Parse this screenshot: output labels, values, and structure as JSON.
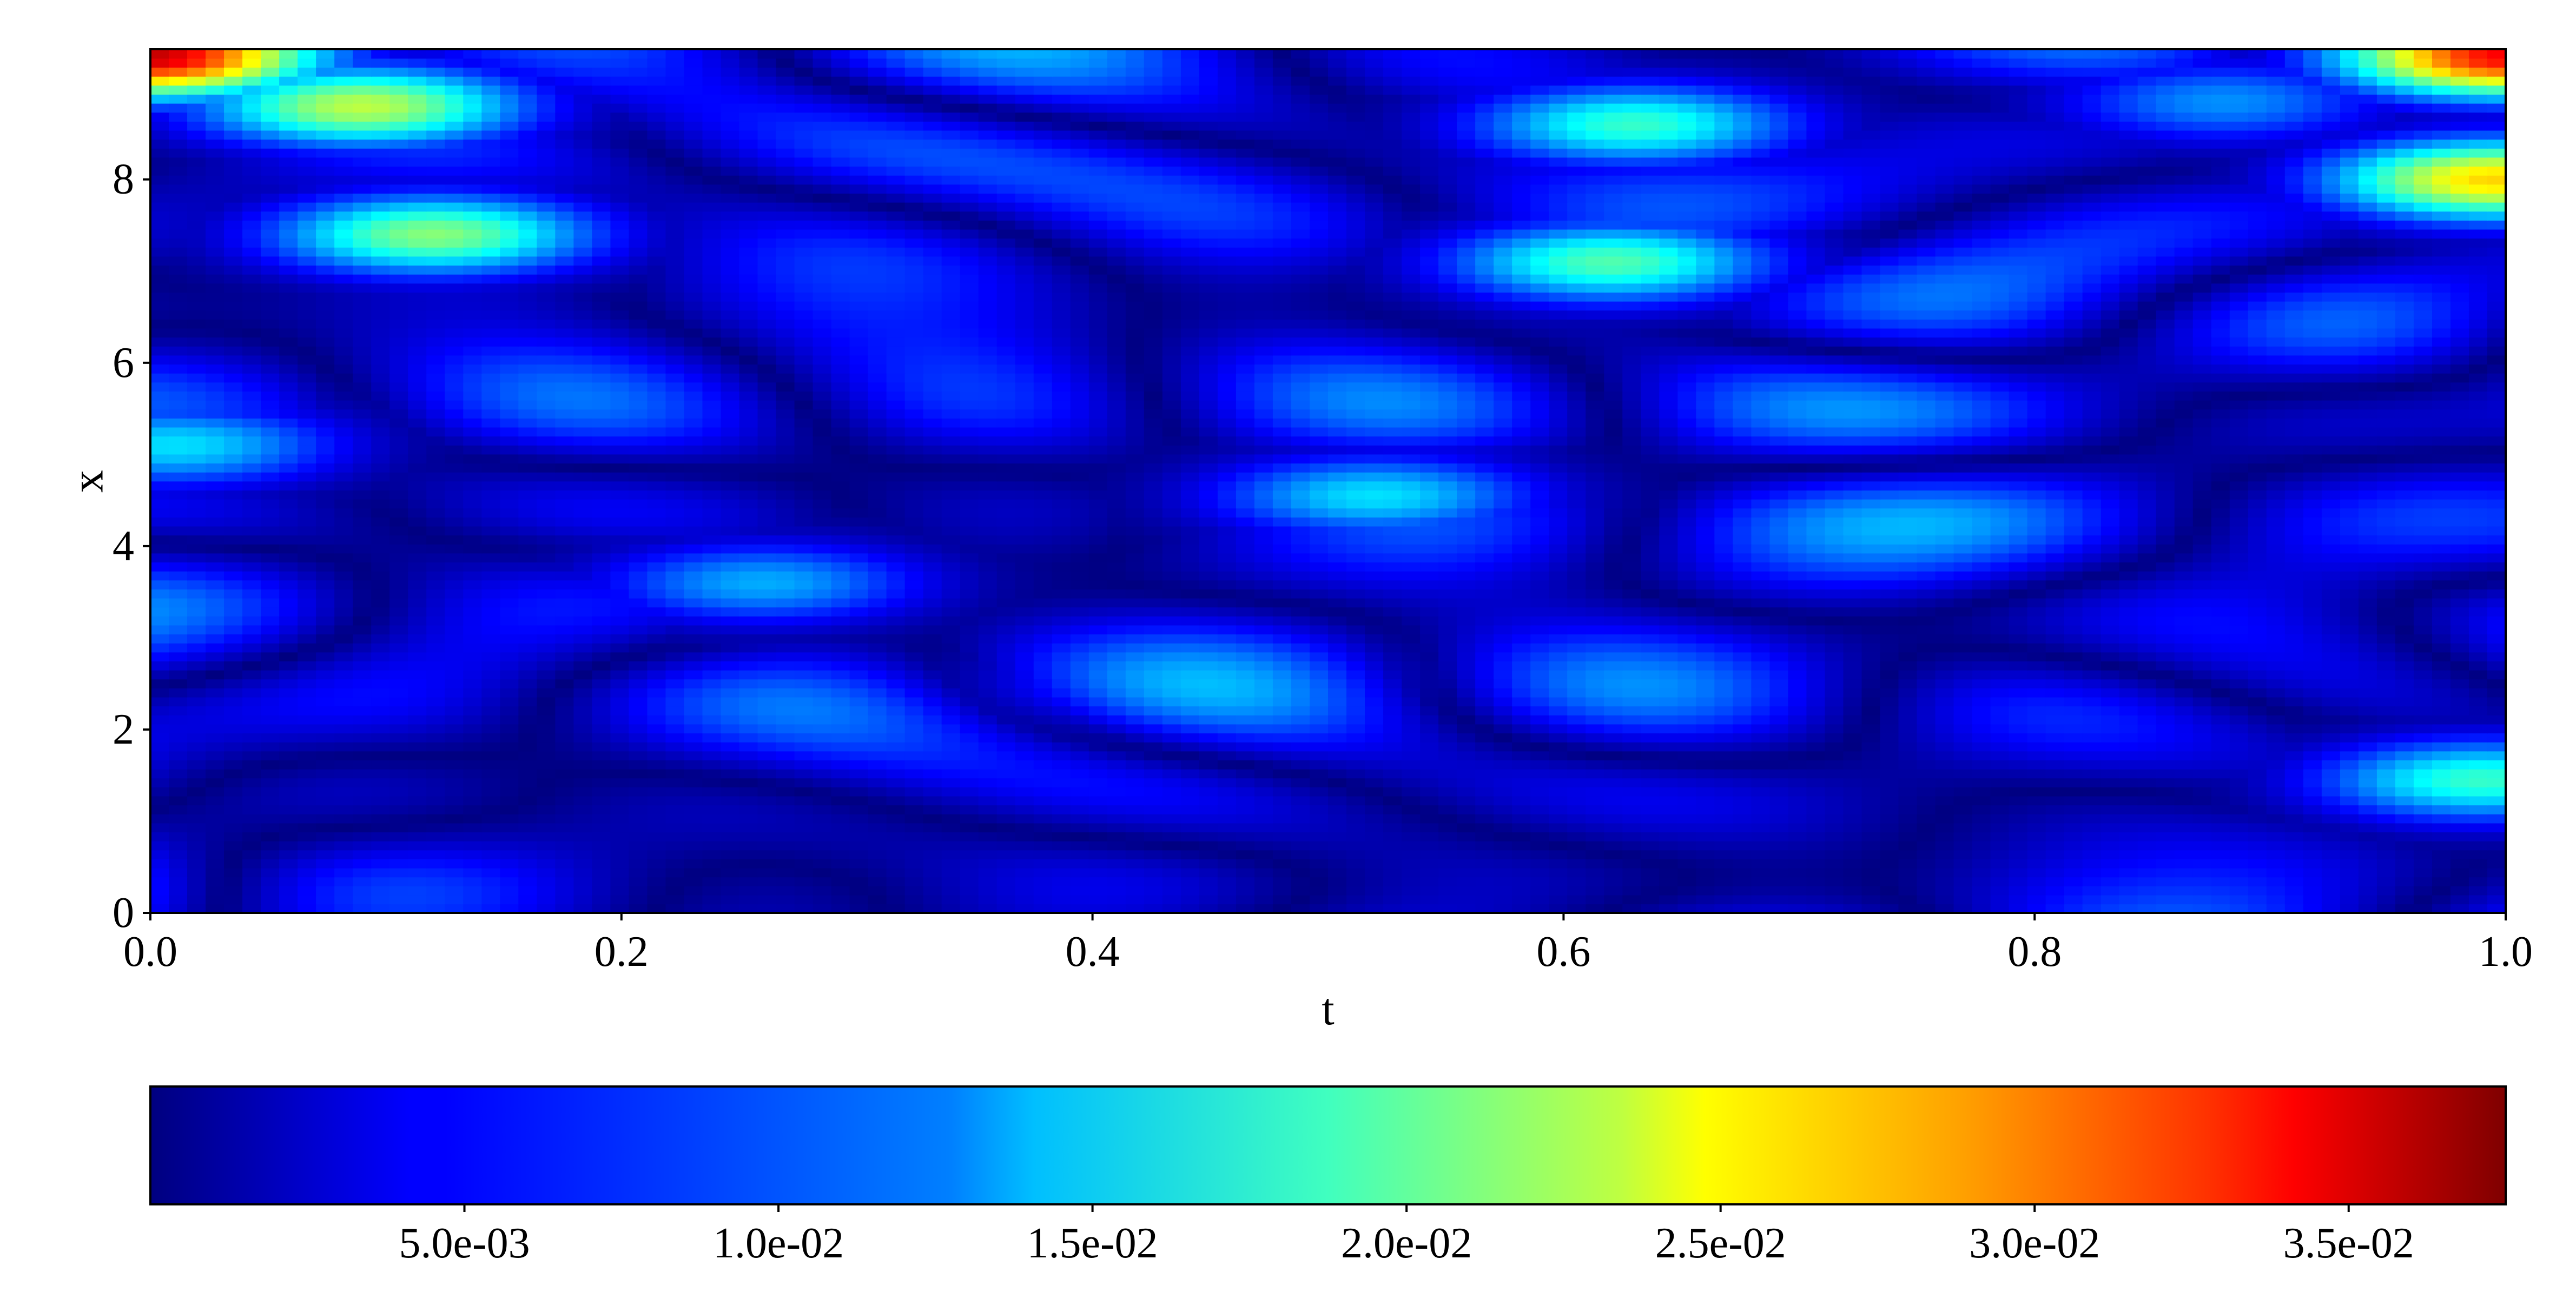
{
  "chart_data": {
    "type": "heatmap",
    "title": "",
    "xlabel": "t",
    "ylabel": "x",
    "xlim": [
      0.0,
      1.0
    ],
    "ylim": [
      0.0,
      9.42
    ],
    "xticks": [
      0.0,
      0.2,
      0.4,
      0.6,
      0.8,
      1.0
    ],
    "xtick_labels": [
      "0.0",
      "0.2",
      "0.4",
      "0.6",
      "0.8",
      "1.0"
    ],
    "yticks": [
      0,
      2,
      4,
      6,
      8
    ],
    "ytick_labels": [
      "0",
      "2",
      "4",
      "6",
      "8"
    ],
    "grid": false,
    "colormap": "jet",
    "colorbar": {
      "orientation": "horizontal",
      "placement": "bottom",
      "vmin": 0.0,
      "vmax": 0.0375,
      "ticks": [
        0.005,
        0.01,
        0.015,
        0.02,
        0.025,
        0.03,
        0.035
      ],
      "tick_labels": [
        "5.0e-03",
        "1.0e-02",
        "1.5e-02",
        "2.0e-02",
        "2.5e-02",
        "3.0e-02",
        "3.5e-02"
      ]
    },
    "features": [
      {
        "t": 0.0,
        "x": 9.35,
        "value": 0.035,
        "note": "upper-left corner peak"
      },
      {
        "t": 1.0,
        "x": 9.35,
        "value": 0.033,
        "note": "upper-right corner peak"
      },
      {
        "t": 0.995,
        "x": 8.0,
        "value": 0.025
      },
      {
        "t": 0.09,
        "x": 8.8,
        "value": 0.021
      },
      {
        "t": 0.12,
        "x": 7.4,
        "value": 0.019
      },
      {
        "t": 0.62,
        "x": 7.1,
        "value": 0.017
      },
      {
        "t": 0.63,
        "x": 8.6,
        "value": 0.016
      },
      {
        "t": 0.99,
        "x": 1.45,
        "value": 0.016
      },
      {
        "t": 0.52,
        "x": 4.55,
        "value": 0.013
      },
      {
        "t": 0.01,
        "x": 5.1,
        "value": 0.013
      },
      {
        "t": 0.26,
        "x": 3.6,
        "value": 0.011
      },
      {
        "t": 0.44,
        "x": 2.55,
        "value": 0.011
      },
      {
        "t": 0.88,
        "x": 8.85,
        "value": 0.01
      }
    ]
  }
}
